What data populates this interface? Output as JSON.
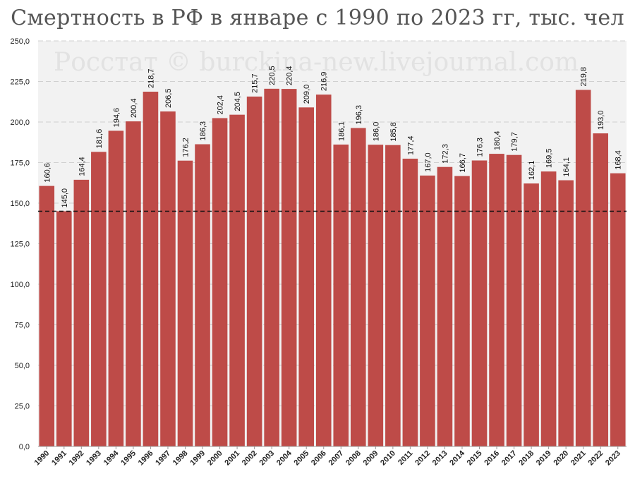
{
  "chart_data": {
    "type": "bar",
    "title": "Смертность в РФ в январе с 1990 по 2023 гг, тыс. чел",
    "watermark": "Росстат © burckina-new.livejournal.com",
    "categories": [
      "1990",
      "1991",
      "1992",
      "1993",
      "1994",
      "1995",
      "1996",
      "1997",
      "1998",
      "1999",
      "2000",
      "2001",
      "2002",
      "2003",
      "2004",
      "2005",
      "2006",
      "2007",
      "2008",
      "2009",
      "2010",
      "2011",
      "2012",
      "2013",
      "2014",
      "2015",
      "2016",
      "2017",
      "2018",
      "2019",
      "2020",
      "2021",
      "2022",
      "2023"
    ],
    "values": [
      160.6,
      145.0,
      164.4,
      181.6,
      194.6,
      200.4,
      218.7,
      206.5,
      176.2,
      186.3,
      202.4,
      204.5,
      215.7,
      220.5,
      220.4,
      209.0,
      216.9,
      186.1,
      196.3,
      186.0,
      185.8,
      177.4,
      167.0,
      172.3,
      166.7,
      176.3,
      180.4,
      179.7,
      162.1,
      169.5,
      164.1,
      219.8,
      193.0,
      168.4
    ],
    "value_labels": [
      "160,6",
      "145,0",
      "164,4",
      "181,6",
      "194,6",
      "200,4",
      "218,7",
      "206,5",
      "176,2",
      "186,3",
      "202,4",
      "204,5",
      "215,7",
      "220,5",
      "220,4",
      "209,0",
      "216,9",
      "186,1",
      "196,3",
      "186,0",
      "185,8",
      "177,4",
      "167,0",
      "172,3",
      "166,7",
      "176,3",
      "180,4",
      "179,7",
      "162,1",
      "169,5",
      "164,1",
      "219,8",
      "193,0",
      "168,4"
    ],
    "ylim": [
      0,
      250
    ],
    "yticks": [
      0,
      25,
      50,
      75,
      100,
      125,
      150,
      175,
      200,
      225,
      250
    ],
    "ytick_labels": [
      "0,0",
      "25,0",
      "50,0",
      "75,0",
      "100,0",
      "125,0",
      "150,0",
      "175,0",
      "200,0",
      "225,0",
      "250,0"
    ],
    "reference_line": 145.0,
    "grid": true,
    "bar_color": "#be4b48",
    "xlabel": "",
    "ylabel": ""
  }
}
